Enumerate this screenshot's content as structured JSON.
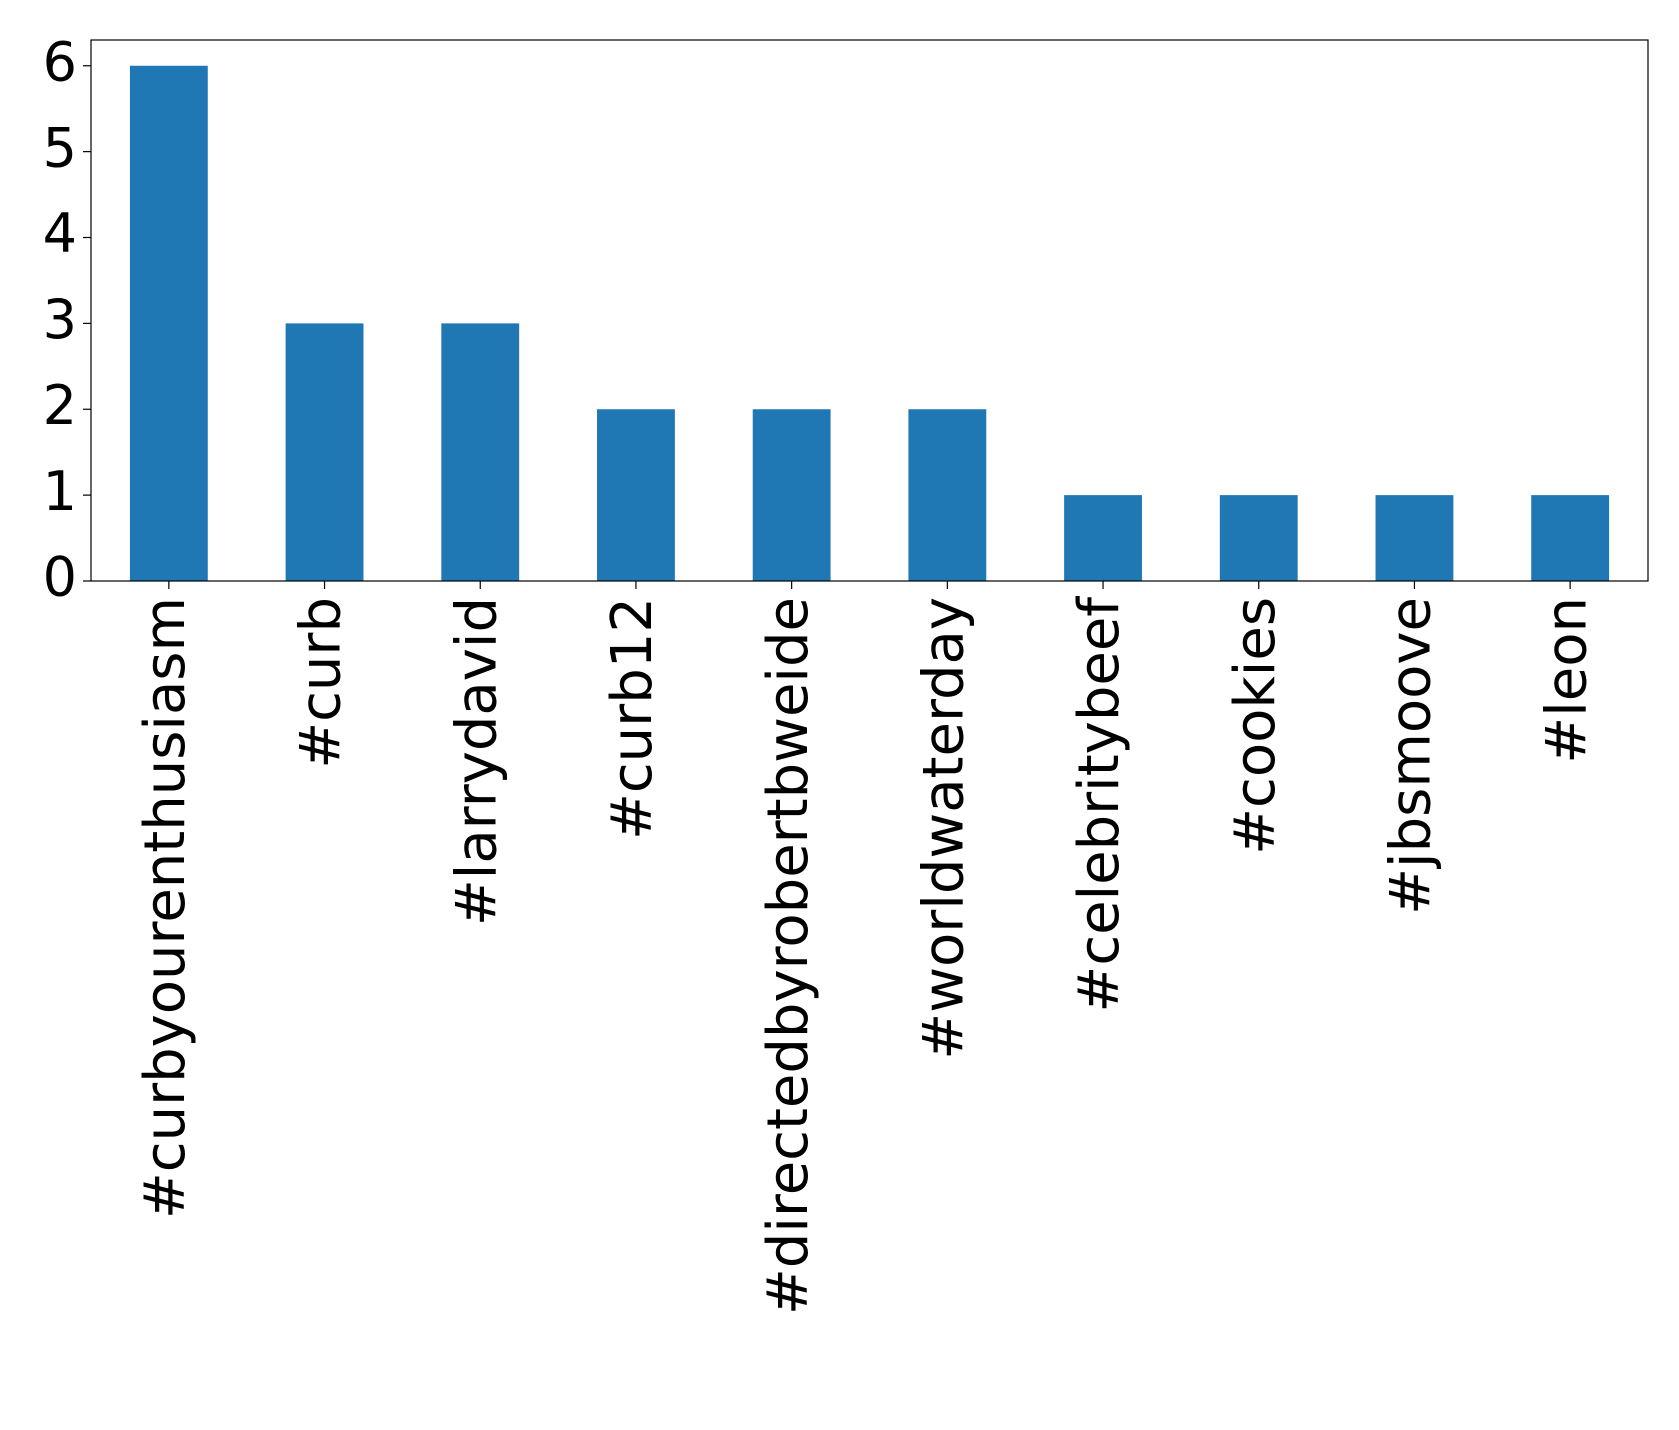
{
  "chart_data": {
    "type": "bar",
    "categories": [
      "#curbyourenthusiasm",
      "#curb",
      "#larrydavid",
      "#curb12",
      "#directedbyrobertbweide",
      "#worldwaterday",
      "#celebritybeef",
      "#cookies",
      "#jbsmoove",
      "#leon"
    ],
    "values": [
      6,
      3,
      3,
      2,
      2,
      2,
      1,
      1,
      1,
      1
    ],
    "color": "#1f77b4",
    "ylim": [
      0,
      6.3
    ],
    "yticks": [
      0,
      1,
      2,
      3,
      4,
      5,
      6
    ],
    "grid": false
  }
}
